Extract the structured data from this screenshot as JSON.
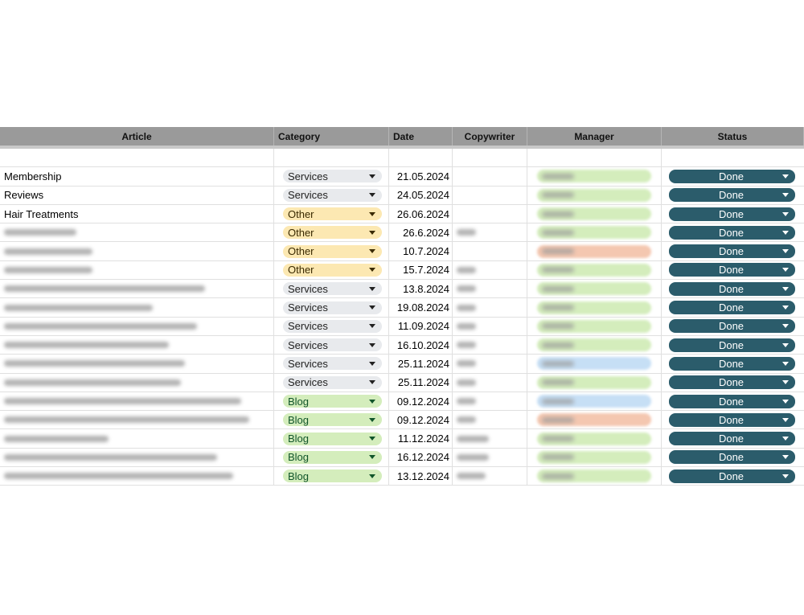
{
  "columns": [
    "Article",
    "Category",
    "Date",
    "Copywriter",
    "Manager",
    "Status"
  ],
  "colors": {
    "Services": {
      "bg": "#e8eaed",
      "fg": "#222222"
    },
    "Other": {
      "bg": "#fce8b2",
      "fg": "#3a2a00"
    },
    "Blog": {
      "bg": "#d4edbc",
      "fg": "#11552a"
    },
    "manager_green": "#d4edbc",
    "manager_red": "#f4c7b0",
    "manager_blue": "#c6dff5",
    "status": "#2b5c6b"
  },
  "rows": [
    {
      "article": "Membership",
      "category": "Services",
      "date": "21.05.2024",
      "copywriter": false,
      "manager": "green",
      "status": "Done"
    },
    {
      "article": "Reviews",
      "category": "Services",
      "date": "24.05.2024",
      "copywriter": false,
      "manager": "green",
      "status": "Done"
    },
    {
      "article": "Hair Treatments",
      "category": "Other",
      "date": "26.06.2024",
      "copywriter": true,
      "manager": "green",
      "status": "Done"
    },
    {
      "article": "",
      "category": "Other",
      "date": "26.6.2024",
      "copywriter": true,
      "manager": "green",
      "status": "Done"
    },
    {
      "article": "",
      "category": "Other",
      "date": "10.7.2024",
      "copywriter": false,
      "manager": "red",
      "status": "Done"
    },
    {
      "article": "",
      "category": "Other",
      "date": "15.7.2024",
      "copywriter": true,
      "manager": "green",
      "status": "Done"
    },
    {
      "article": "",
      "category": "Services",
      "date": "13.8.2024",
      "copywriter": true,
      "manager": "green",
      "status": "Done"
    },
    {
      "article": "",
      "category": "Services",
      "date": "19.08.2024",
      "copywriter": true,
      "manager": "green",
      "status": "Done"
    },
    {
      "article": "",
      "category": "Services",
      "date": "11.09.2024",
      "copywriter": true,
      "manager": "green",
      "status": "Done"
    },
    {
      "article": "",
      "category": "Services",
      "date": "16.10.2024",
      "copywriter": true,
      "manager": "green",
      "status": "Done"
    },
    {
      "article": "",
      "category": "Services",
      "date": "25.11.2024",
      "copywriter": true,
      "manager": "blue",
      "status": "Done"
    },
    {
      "article": "",
      "category": "Services",
      "date": "25.11.2024",
      "copywriter": true,
      "manager": "green",
      "status": "Done"
    },
    {
      "article": "",
      "category": "Blog",
      "date": "09.12.2024",
      "copywriter": true,
      "manager": "blue",
      "status": "Done"
    },
    {
      "article": "",
      "category": "Blog",
      "date": "09.12.2024",
      "copywriter": true,
      "manager": "red",
      "status": "Done"
    },
    {
      "article": "",
      "category": "Blog",
      "date": "11.12.2024",
      "copywriter": true,
      "manager": "green",
      "status": "Done"
    },
    {
      "article": "",
      "category": "Blog",
      "date": "16.12.2024",
      "copywriter": true,
      "manager": "green",
      "status": "Done"
    },
    {
      "article": "",
      "category": "Blog",
      "date": "13.12.2024",
      "copywriter": true,
      "manager": "green",
      "status": "Done"
    }
  ]
}
